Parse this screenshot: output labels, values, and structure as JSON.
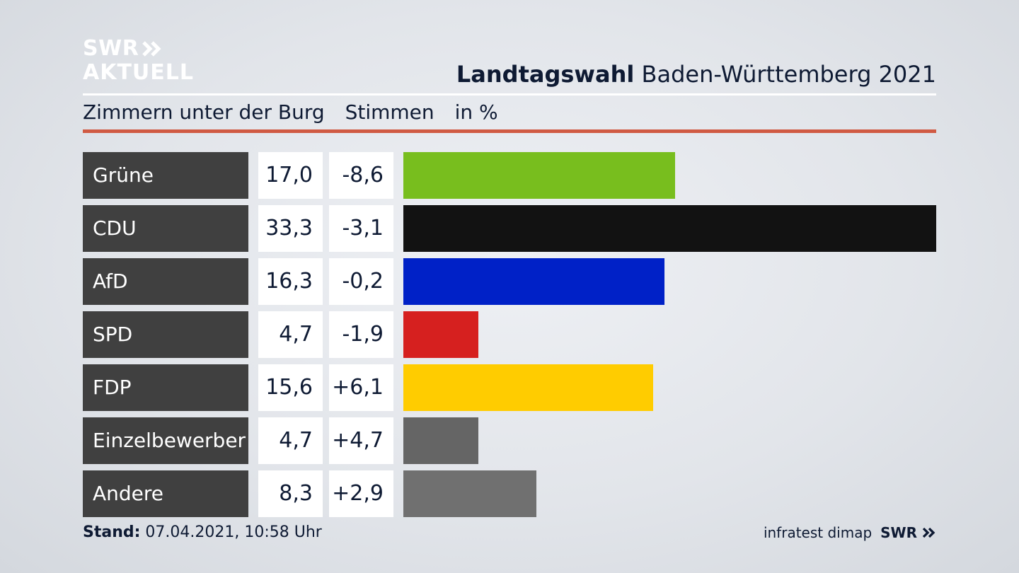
{
  "logo": {
    "line1": "SWR",
    "line2": "AKTUELL",
    "icon": "double-chevron-icon"
  },
  "header": {
    "title_bold": "Landtagswahl",
    "title_rest": "Baden-Württemberg 2021",
    "district": "Zimmern unter der Burg",
    "measure": "Stimmen",
    "unit": "in %"
  },
  "chart_data": {
    "type": "bar",
    "orientation": "horizontal",
    "categories": [
      "Grüne",
      "CDU",
      "AfD",
      "SPD",
      "FDP",
      "Einzelbewerber",
      "Andere"
    ],
    "values": [
      17.0,
      33.3,
      16.3,
      4.7,
      15.6,
      4.7,
      8.3
    ],
    "value_labels": [
      "17,0",
      "33,3",
      "16,3",
      "4,7",
      "15,6",
      "4,7",
      "8,3"
    ],
    "changes": [
      -8.6,
      -3.1,
      -0.2,
      -1.9,
      6.1,
      4.7,
      2.9
    ],
    "change_labels": [
      "-8,6",
      "-3,1",
      "-0,2",
      "-1,9",
      "+6,1",
      "+4,7",
      "+2,9"
    ],
    "colors": [
      "#78be1e",
      "#121212",
      "#0021c7",
      "#d6201f",
      "#ffcc00",
      "#656565",
      "#707070"
    ],
    "xlim": [
      0,
      33.3
    ],
    "grid": false
  },
  "footer": {
    "stand_label": "Stand:",
    "stand_value": "07.04.2021, 10:58 Uhr",
    "source": "infratest dimap",
    "brand": "SWR"
  }
}
